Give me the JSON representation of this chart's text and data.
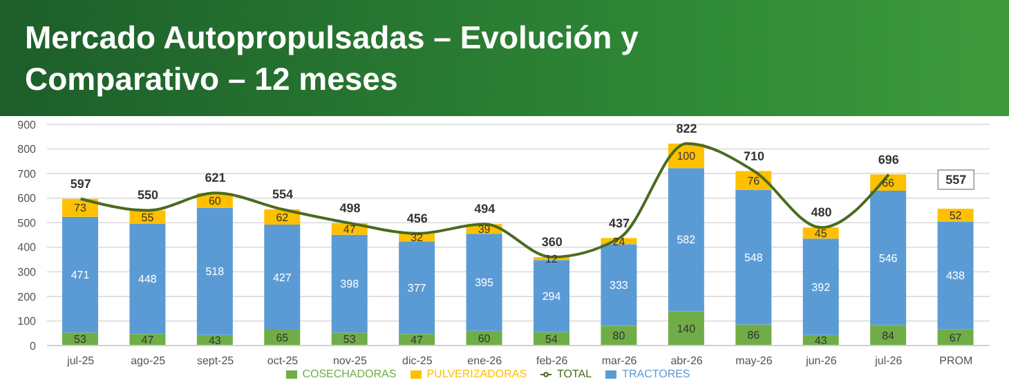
{
  "chart_data": {
    "type": "bar",
    "title": "Mercado Autopropulsadas – Evolución y Comparativo – 12 meses",
    "categories": [
      "jul-25",
      "ago-25",
      "sept-25",
      "oct-25",
      "nov-25",
      "dic-25",
      "ene-26",
      "feb-26",
      "mar-26",
      "abr-26",
      "may-26",
      "jun-26",
      "jul-26",
      "PROM"
    ],
    "series": [
      {
        "name": "COSECHADORAS",
        "color": "#70ad47",
        "values": [
          53,
          47,
          43,
          65,
          53,
          47,
          60,
          54,
          80,
          140,
          86,
          43,
          84,
          67
        ]
      },
      {
        "name": "TRACTORES",
        "color": "#5b9bd5",
        "values": [
          471,
          448,
          518,
          427,
          398,
          377,
          395,
          294,
          333,
          582,
          548,
          392,
          546,
          438
        ]
      },
      {
        "name": "PULVERIZADORAS",
        "color": "#ffc000",
        "values": [
          73,
          55,
          60,
          62,
          47,
          32,
          39,
          12,
          24,
          100,
          76,
          45,
          66,
          52
        ]
      },
      {
        "name": "TOTAL",
        "type": "line",
        "color": "#4a6b1e",
        "values": [
          597,
          550,
          621,
          554,
          498,
          456,
          494,
          360,
          437,
          822,
          710,
          480,
          696,
          null
        ]
      }
    ],
    "stacked": true,
    "data_labels": true,
    "ylim": [
      0,
      900
    ],
    "yticks": [
      0,
      100,
      200,
      300,
      400,
      500,
      600,
      700,
      800,
      900
    ],
    "grid": "y",
    "legend": "bottom",
    "marker": "none",
    "annotations": [
      {
        "text": "557",
        "x": "PROM",
        "y": 557
      }
    ]
  }
}
